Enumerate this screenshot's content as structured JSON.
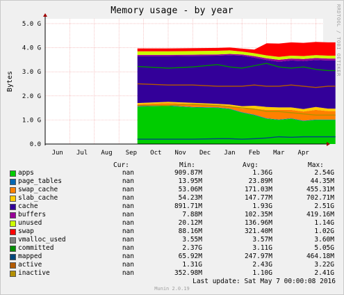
{
  "title": "Memory usage - by year",
  "side_label": "RRDTOOL / TOBI OETIKER",
  "ylabel": "Bytes",
  "footer": {
    "last_update": "Last update: Sat May  7 00:00:08 2016",
    "munin": "Munin 2.0.19"
  },
  "legend_headers": {
    "cur": "Cur:",
    "min": "Min:",
    "avg": "Avg:",
    "max": "Max:"
  },
  "legend": [
    {
      "name": "apps",
      "color": "#00cc00",
      "cur": "nan",
      "min": "909.87M",
      "avg": "1.36G",
      "max": "2.54G"
    },
    {
      "name": "page_tables",
      "color": "#0066b3",
      "cur": "nan",
      "min": "13.95M",
      "avg": "23.89M",
      "max": "44.35M"
    },
    {
      "name": "swap_cache",
      "color": "#ff8000",
      "cur": "nan",
      "min": "53.06M",
      "avg": "171.03M",
      "max": "455.31M"
    },
    {
      "name": "slab_cache",
      "color": "#ffcc00",
      "cur": "nan",
      "min": "54.23M",
      "avg": "147.77M",
      "max": "702.71M"
    },
    {
      "name": "cache",
      "color": "#330099",
      "cur": "nan",
      "min": "891.71M",
      "avg": "1.93G",
      "max": "2.51G"
    },
    {
      "name": "buffers",
      "color": "#990099",
      "cur": "nan",
      "min": "7.88M",
      "avg": "102.35M",
      "max": "419.16M"
    },
    {
      "name": "unused",
      "color": "#ccff00",
      "cur": "nan",
      "min": "20.12M",
      "avg": "136.96M",
      "max": "1.14G"
    },
    {
      "name": "swap",
      "color": "#ff0000",
      "cur": "nan",
      "min": "88.16M",
      "avg": "321.40M",
      "max": "1.02G"
    },
    {
      "name": "vmalloc_used",
      "color": "#808080",
      "cur": "nan",
      "min": "3.55M",
      "avg": "3.57M",
      "max": "3.60M"
    },
    {
      "name": "committed",
      "color": "#008f00",
      "cur": "nan",
      "min": "2.37G",
      "avg": "3.11G",
      "max": "5.05G"
    },
    {
      "name": "mapped",
      "color": "#00487d",
      "cur": "nan",
      "min": "65.92M",
      "avg": "247.97M",
      "max": "464.18M"
    },
    {
      "name": "active",
      "color": "#b35a00",
      "cur": "nan",
      "min": "1.31G",
      "avg": "2.43G",
      "max": "3.22G"
    },
    {
      "name": "inactive",
      "color": "#b38f00",
      "cur": "nan",
      "min": "352.98M",
      "avg": "1.10G",
      "max": "2.41G"
    }
  ],
  "chart_data": {
    "type": "area",
    "title": "Memory usage - by year",
    "ylabel": "Bytes",
    "x_ticks": [
      "Jun",
      "Jul",
      "Aug",
      "Sep",
      "Oct",
      "Nov",
      "Dec",
      "Jan",
      "Feb",
      "Mar",
      "Apr"
    ],
    "y_ticks": [
      "0.0",
      "1.0 G",
      "2.0 G",
      "3.0 G",
      "4.0 G",
      "5.0 G"
    ],
    "ylim_gb": [
      0,
      5.2
    ],
    "data_start_month": 3.75,
    "months_span": 11.3,
    "sample_months": [
      3.75,
      5,
      6,
      7,
      7.5,
      8,
      8.5,
      9,
      9.5,
      10,
      10.5,
      11,
      11.5,
      11.8
    ],
    "stacked_series": [
      {
        "name": "apps",
        "values_gb": [
          1.55,
          1.58,
          1.52,
          1.5,
          1.45,
          1.3,
          1.2,
          1.05,
          1.0,
          1.05,
          0.95,
          1.0,
          1.0,
          1.0
        ]
      },
      {
        "name": "page_tables",
        "values_gb": [
          0.02,
          0.02,
          0.02,
          0.02,
          0.02,
          0.02,
          0.02,
          0.02,
          0.02,
          0.02,
          0.02,
          0.02,
          0.02,
          0.02
        ]
      },
      {
        "name": "swap_cache",
        "values_gb": [
          0.08,
          0.1,
          0.12,
          0.1,
          0.12,
          0.15,
          0.25,
          0.35,
          0.4,
          0.35,
          0.38,
          0.4,
          0.35,
          0.35
        ]
      },
      {
        "name": "slab_cache",
        "values_gb": [
          0.05,
          0.05,
          0.05,
          0.05,
          0.05,
          0.1,
          0.12,
          0.12,
          0.1,
          0.1,
          0.1,
          0.12,
          0.1,
          0.1
        ]
      },
      {
        "name": "cache",
        "values_gb": [
          1.95,
          1.9,
          1.95,
          2.0,
          2.05,
          2.1,
          2.0,
          1.95,
          1.9,
          1.95,
          2.0,
          1.95,
          2.0,
          2.0
        ]
      },
      {
        "name": "buffers",
        "values_gb": [
          0.05,
          0.05,
          0.05,
          0.05,
          0.05,
          0.05,
          0.06,
          0.07,
          0.08,
          0.08,
          0.08,
          0.08,
          0.08,
          0.08
        ]
      },
      {
        "name": "unused",
        "values_gb": [
          0.15,
          0.15,
          0.15,
          0.15,
          0.15,
          0.12,
          0.12,
          0.12,
          0.12,
          0.12,
          0.12,
          0.12,
          0.12,
          0.12
        ]
      },
      {
        "name": "swap",
        "values_gb": [
          0.12,
          0.12,
          0.12,
          0.12,
          0.12,
          0.12,
          0.15,
          0.5,
          0.55,
          0.55,
          0.55,
          0.55,
          0.55,
          0.55
        ]
      }
    ],
    "line_series": [
      {
        "name": "committed",
        "values_gb": [
          3.22,
          3.15,
          3.2,
          3.3,
          3.2,
          3.15,
          3.25,
          3.35,
          3.2,
          3.15,
          3.2,
          3.1,
          3.05,
          3.05
        ]
      },
      {
        "name": "mapped",
        "values_gb": [
          0.2,
          0.2,
          0.2,
          0.22,
          0.22,
          0.2,
          0.22,
          0.25,
          0.3,
          0.28,
          0.3,
          0.3,
          0.3,
          0.3
        ]
      },
      {
        "name": "active",
        "values_gb": [
          2.5,
          2.45,
          2.45,
          2.4,
          2.4,
          2.4,
          2.45,
          2.4,
          2.4,
          2.45,
          2.4,
          2.35,
          2.4,
          2.4
        ]
      },
      {
        "name": "inactive",
        "values_gb": [
          1.6,
          1.6,
          1.65,
          1.6,
          1.55,
          1.5,
          1.45,
          1.35,
          1.35,
          1.3,
          1.25,
          1.2,
          1.2,
          1.2
        ]
      }
    ]
  }
}
